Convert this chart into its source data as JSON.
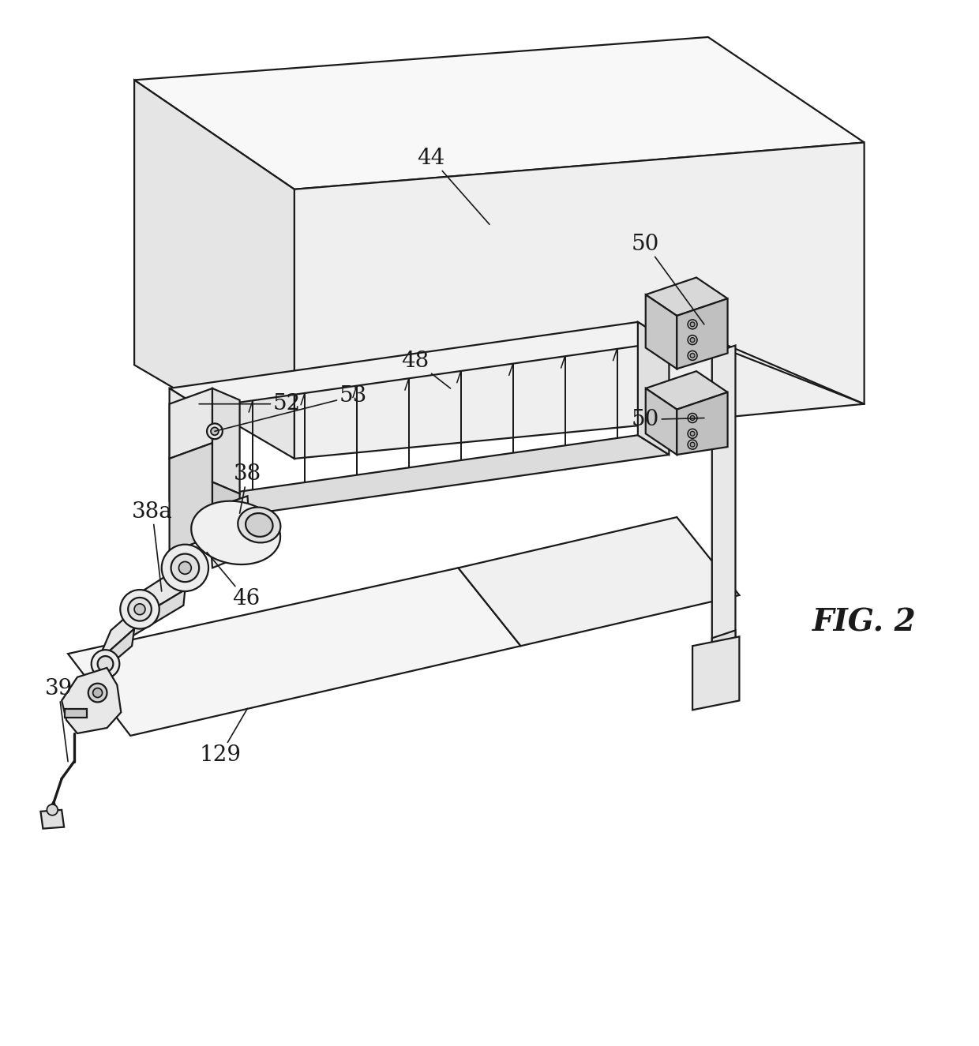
{
  "background_color": "#ffffff",
  "line_color": "#1a1a1a",
  "fig_label": "FIG. 2",
  "fig_width": 12.4,
  "fig_height": 13.25,
  "dpi": 100
}
